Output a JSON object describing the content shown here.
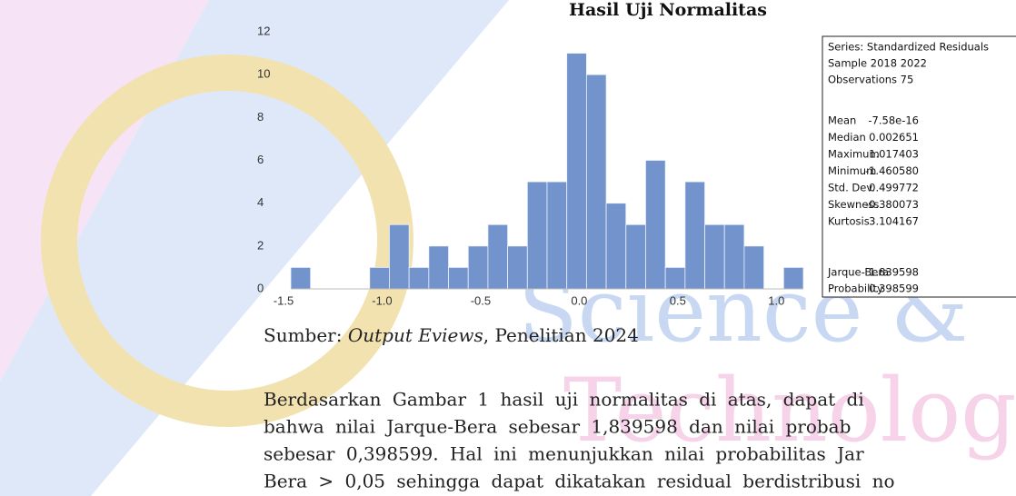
{
  "title": "Hasil Uji Normalitas",
  "chart_data": {
    "type": "histogram",
    "bins": [
      -1.5,
      -1.4,
      -1.3,
      -1.2,
      -1.1,
      -1.0,
      -0.9,
      -0.8,
      -0.7,
      -0.6,
      -0.5,
      -0.4,
      -0.3,
      -0.2,
      -0.1,
      0.0,
      0.1,
      0.2,
      0.3,
      0.4,
      0.5,
      0.6,
      0.7,
      0.8,
      0.9,
      1.0,
      1.1
    ],
    "values": [
      1,
      0,
      0,
      0,
      1,
      3,
      1,
      2,
      1,
      2,
      3,
      2,
      5,
      5,
      11,
      10,
      4,
      3,
      6,
      1,
      5,
      3,
      3,
      2,
      0,
      1
    ],
    "color": "#7393cd",
    "xlim": [
      -1.5,
      1.1
    ],
    "xticks": [
      -1.5,
      {
        "value": -1,
        "label": "-1.0"
      },
      -0.5,
      {
        "value": 0,
        "label": "0.0"
      },
      0.5,
      {
        "value": 1,
        "label": "1.0"
      }
    ],
    "ylim": [
      0,
      12
    ],
    "yticks": [
      0,
      2,
      4,
      6,
      8,
      10,
      12
    ]
  },
  "stats": {
    "header": [
      "Series: Standardized Residuals",
      "Sample 2018 2022",
      "Observations 75"
    ],
    "rows": [
      [
        "Mean",
        "-7.58e-16"
      ],
      [
        "Median",
        "0.002651"
      ],
      [
        "Maximum",
        "1.017403"
      ],
      [
        "Minimum",
        "-1.460580"
      ],
      [
        "Std. Dev.",
        "0.499772"
      ],
      [
        "Skewness",
        "-0.380073"
      ],
      [
        "Kurtosis",
        "3.104167"
      ]
    ],
    "tests": [
      [
        "Jarque-Bera",
        "1.839598"
      ],
      [
        "Probability",
        "0.398599"
      ]
    ]
  },
  "caption": {
    "prefix": "Sumber:",
    "italic": "Output Eviews",
    "suffix": ", Penelitian 2024"
  },
  "paragraph": [
    "Berdasarkan Gambar 1 hasil uji normalitas di atas, dapat di",
    "bahwa nilai Jarque-Bera sebesar 1,839598 dan nilai probab",
    "sebesar 0,398599. Hal ini menunjukkan nilai probabilitas Jar",
    "Bera > 0,05 sehingga dapat dikatakan residual berdistribusi no"
  ],
  "watermark": [
    "Science &",
    "Technology"
  ]
}
